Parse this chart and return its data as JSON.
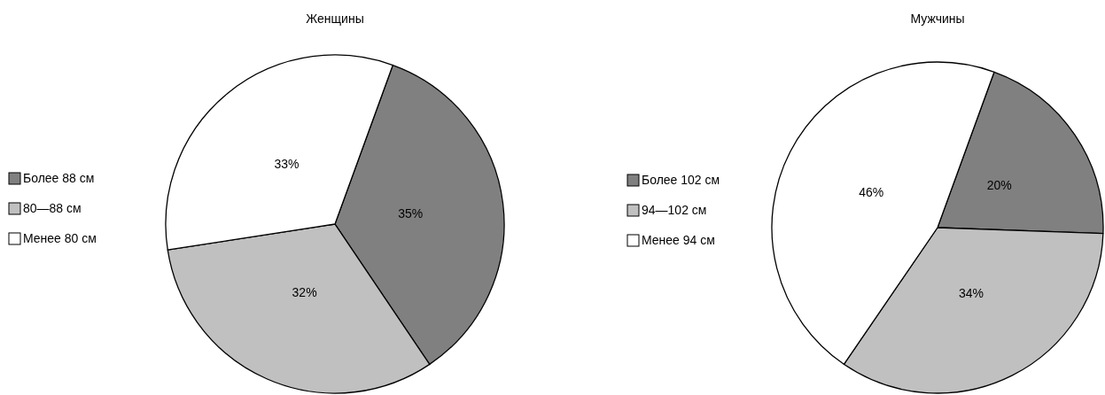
{
  "chart_data": [
    {
      "type": "pie",
      "title": "Женщины",
      "categories": [
        "Более 88 см",
        "80—88 см",
        "Менее 80 см"
      ],
      "values": [
        35,
        32,
        33
      ],
      "value_labels": [
        "35%",
        "32%",
        "33%"
      ],
      "colors": [
        "#808080",
        "#c0c0c0",
        "#ffffff"
      ],
      "legend": "left"
    },
    {
      "type": "pie",
      "title": "Мужчины",
      "categories": [
        "Более 102 см",
        "94—102 см",
        "Менее 94 см"
      ],
      "values": [
        20,
        34,
        46
      ],
      "value_labels": [
        "20%",
        "34%",
        "46%"
      ],
      "colors": [
        "#808080",
        "#c0c0c0",
        "#ffffff"
      ],
      "legend": "left"
    }
  ]
}
